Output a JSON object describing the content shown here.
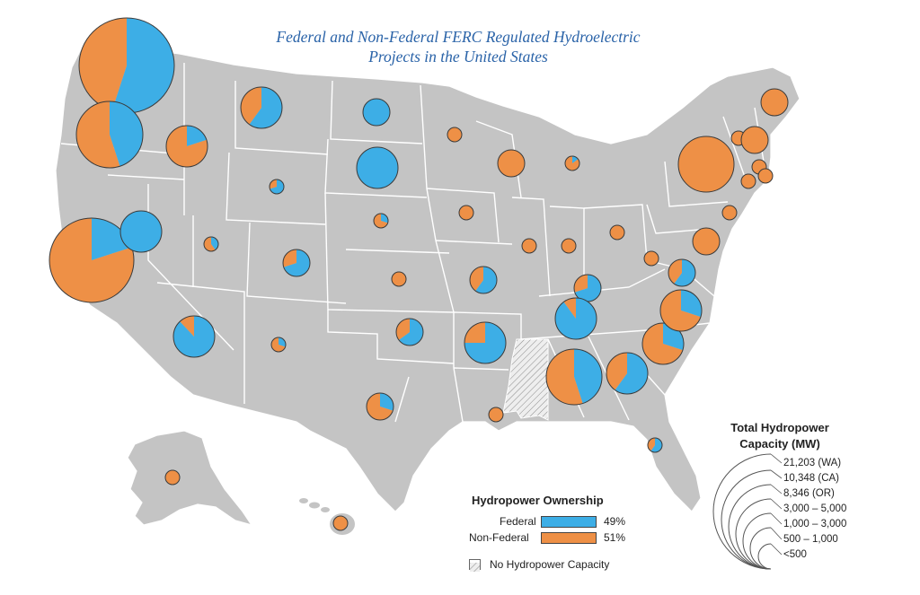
{
  "title": {
    "line1": "Federal and Non-Federal FERC Regulated Hydroelectric",
    "line2": "Projects in the United States"
  },
  "colors": {
    "federal": "#3daee6",
    "non_federal": "#ee9046",
    "land": "#c4c4c4",
    "state_border": "#ffffff",
    "no_capacity_hatch": "#8a8a8a",
    "title_text": "#2a63a8"
  },
  "ownership_legend": {
    "title": "Hydropower Ownership",
    "federal_label": "Federal",
    "federal_pct": "49%",
    "non_federal_label": "Non-Federal",
    "non_federal_pct": "51%",
    "no_capacity_label": "No Hydropower Capacity"
  },
  "capacity_legend": {
    "title_line1": "Total Hydropower",
    "title_line2": "Capacity (MW)",
    "classes": [
      "21,203 (WA)",
      "10,348 (CA)",
      "8,346 (OR)",
      "3,000 – 5,000",
      "1,000 – 3,000",
      "500 – 1,000",
      "<500"
    ]
  },
  "no_capacity_states": [
    "MS"
  ],
  "state_pies": [
    {
      "state": "WA",
      "capacity_class": "21,203 (WA)",
      "federal_share": 0.55
    },
    {
      "state": "OR",
      "capacity_class": "8,346 (OR)",
      "federal_share": 0.45
    },
    {
      "state": "CA",
      "capacity_class": "10,348 (CA)",
      "federal_share": 0.2
    },
    {
      "state": "ID",
      "capacity_class": "1,000 – 3,000",
      "federal_share": 0.2
    },
    {
      "state": "MT",
      "capacity_class": "1,000 – 3,000",
      "federal_share": 0.6
    },
    {
      "state": "NV",
      "capacity_class": "1,000 – 3,000",
      "federal_share": 1.0
    },
    {
      "state": "WY",
      "capacity_class": "<500",
      "federal_share": 0.7
    },
    {
      "state": "UT",
      "capacity_class": "<500",
      "federal_share": 0.4
    },
    {
      "state": "CO",
      "capacity_class": "500 – 1,000",
      "federal_share": 0.7
    },
    {
      "state": "AZ",
      "capacity_class": "1,000 – 3,000",
      "federal_share": 0.88
    },
    {
      "state": "NM",
      "capacity_class": "<500",
      "federal_share": 0.3
    },
    {
      "state": "ND",
      "capacity_class": "500 – 1,000",
      "federal_share": 1.0
    },
    {
      "state": "SD",
      "capacity_class": "1,000 – 3,000",
      "federal_share": 1.0
    },
    {
      "state": "NE",
      "capacity_class": "<500",
      "federal_share": 0.3
    },
    {
      "state": "KS",
      "capacity_class": "<500",
      "federal_share": 0.0
    },
    {
      "state": "OK",
      "capacity_class": "500 – 1,000",
      "federal_share": 0.65
    },
    {
      "state": "TX",
      "capacity_class": "500 – 1,000",
      "federal_share": 0.3
    },
    {
      "state": "MN",
      "capacity_class": "<500",
      "federal_share": 0.0
    },
    {
      "state": "IA",
      "capacity_class": "<500",
      "federal_share": 0.0
    },
    {
      "state": "MO",
      "capacity_class": "500 – 1,000",
      "federal_share": 0.6
    },
    {
      "state": "AR",
      "capacity_class": "1,000 – 3,000",
      "federal_share": 0.75
    },
    {
      "state": "LA",
      "capacity_class": "<500",
      "federal_share": 0.0
    },
    {
      "state": "WI",
      "capacity_class": "500 – 1,000",
      "federal_share": 0.0
    },
    {
      "state": "MI",
      "capacity_class": "<500",
      "federal_share": 0.15
    },
    {
      "state": "IL",
      "capacity_class": "<500",
      "federal_share": 0.0
    },
    {
      "state": "IN",
      "capacity_class": "<500",
      "federal_share": 0.0
    },
    {
      "state": "OH",
      "capacity_class": "<500",
      "federal_share": 0.0
    },
    {
      "state": "KY",
      "capacity_class": "500 – 1,000",
      "federal_share": 0.7
    },
    {
      "state": "TN",
      "capacity_class": "1,000 – 3,000",
      "federal_share": 0.9
    },
    {
      "state": "AL",
      "capacity_class": "3,000 – 5,000",
      "federal_share": 0.45
    },
    {
      "state": "GA",
      "capacity_class": "1,000 – 3,000",
      "federal_share": 0.6
    },
    {
      "state": "FL",
      "capacity_class": "<500",
      "federal_share": 0.6
    },
    {
      "state": "SC",
      "capacity_class": "1,000 – 3,000",
      "federal_share": 0.3
    },
    {
      "state": "NC",
      "capacity_class": "1,000 – 3,000",
      "federal_share": 0.3
    },
    {
      "state": "VA",
      "capacity_class": "500 – 1,000",
      "federal_share": 0.6
    },
    {
      "state": "WV",
      "capacity_class": "<500",
      "federal_share": 0.0
    },
    {
      "state": "PA",
      "capacity_class": "500 – 1,000",
      "federal_share": 0.0
    },
    {
      "state": "NY",
      "capacity_class": "3,000 – 5,000",
      "federal_share": 0.0
    },
    {
      "state": "NJ",
      "capacity_class": "<500",
      "federal_share": 0.0
    },
    {
      "state": "VT",
      "capacity_class": "<500",
      "federal_share": 0.0
    },
    {
      "state": "NH",
      "capacity_class": "500 – 1,000",
      "federal_share": 0.0
    },
    {
      "state": "ME",
      "capacity_class": "500 – 1,000",
      "federal_share": 0.0
    },
    {
      "state": "MA",
      "capacity_class": "<500",
      "federal_share": 0.0
    },
    {
      "state": "CT",
      "capacity_class": "<500",
      "federal_share": 0.0
    },
    {
      "state": "RI",
      "capacity_class": "<500",
      "federal_share": 0.0
    },
    {
      "state": "AK",
      "capacity_class": "<500",
      "federal_share": 0.0
    },
    {
      "state": "HI",
      "capacity_class": "<500",
      "federal_share": 0.0
    }
  ]
}
